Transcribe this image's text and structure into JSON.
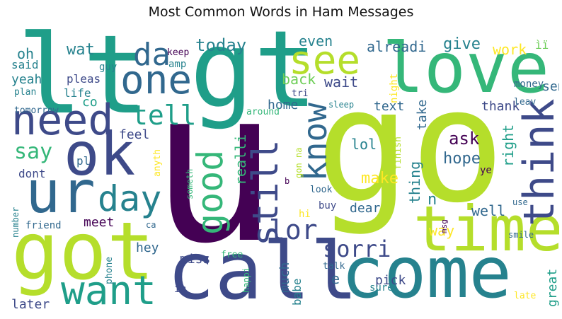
{
  "title": "Most Common Words in Ham Messages",
  "colors": {
    "dark_purple": "#440154",
    "indigo": "#3e4a89",
    "blue": "#31688e",
    "teal_blue": "#26828e",
    "teal": "#1f9e89",
    "green": "#35b779",
    "light_green": "#6ece58",
    "lime": "#b5de2b",
    "yellow": "#fde725"
  },
  "words": {
    "u": "u",
    "go": "go",
    "gt": "gt",
    "lt": "lt",
    "love": "love",
    "call": "call",
    "come": "come",
    "got": "got",
    "time": "time",
    "ok": "ok",
    "ur": "ur",
    "need": "need",
    "one": "one",
    "see": "see",
    "da": "da",
    "think": "think",
    "know": "know",
    "want": "want",
    "good": "good",
    "still": "still",
    "day": "day",
    "tell": "tell",
    "lor": "lor",
    "sorri": "sorri",
    "say": "say",
    "home": "home",
    "back": "back",
    "wait": "wait",
    "today": "today",
    "alreadi": "alreadi",
    "give": "give",
    "work": "work",
    "even": "even",
    "wat": "wat",
    "oh": "oh",
    "said": "said",
    "yeah": "yeah",
    "pleas": "pleas",
    "guy": "guy",
    "keep": "keep",
    "amp": "amp",
    "plan": "plan",
    "life": "life",
    "co": "co",
    "tomorrow": "tomorrow",
    "feel": "feel",
    "dont": "dont",
    "pl": "pl",
    "anyth": "anyth",
    "someth": "someth",
    "realli": "realli",
    "text": "text",
    "take": "take",
    "thank": "thank",
    "ask": "ask",
    "hope": "hope",
    "right": "right",
    "night": "night",
    "leav": "leav",
    "sleep": "sleep",
    "tri": "tri",
    "around": "around",
    "lol": "lol",
    "make": "make",
    "thing": "thing",
    "finish": "finish",
    "gon na": "gon na",
    "b": "b",
    "look": "look",
    "n": "n",
    "dear": "dear",
    "well": "well",
    "meet": "meet",
    "hey": "hey",
    "miss": "miss",
    "much": "much",
    "babe": "babe",
    "way": "way",
    "msg": "msg",
    "smile": "smile",
    "use": "use",
    "ye": "ye",
    "money": "money",
    "send": "send",
    "iii": "ìï",
    "number": "number",
    "friend": "friend",
    "phone": "phone",
    "ca": "ca",
    "hi": "hi",
    "buy": "buy",
    "free": "free",
    "happi": "happi",
    "talk": "talk",
    "im": "im",
    "later": "later",
    "pick": "pick",
    "e": "e",
    "sure": "sure",
    "great": "great",
    "late": "late"
  }
}
